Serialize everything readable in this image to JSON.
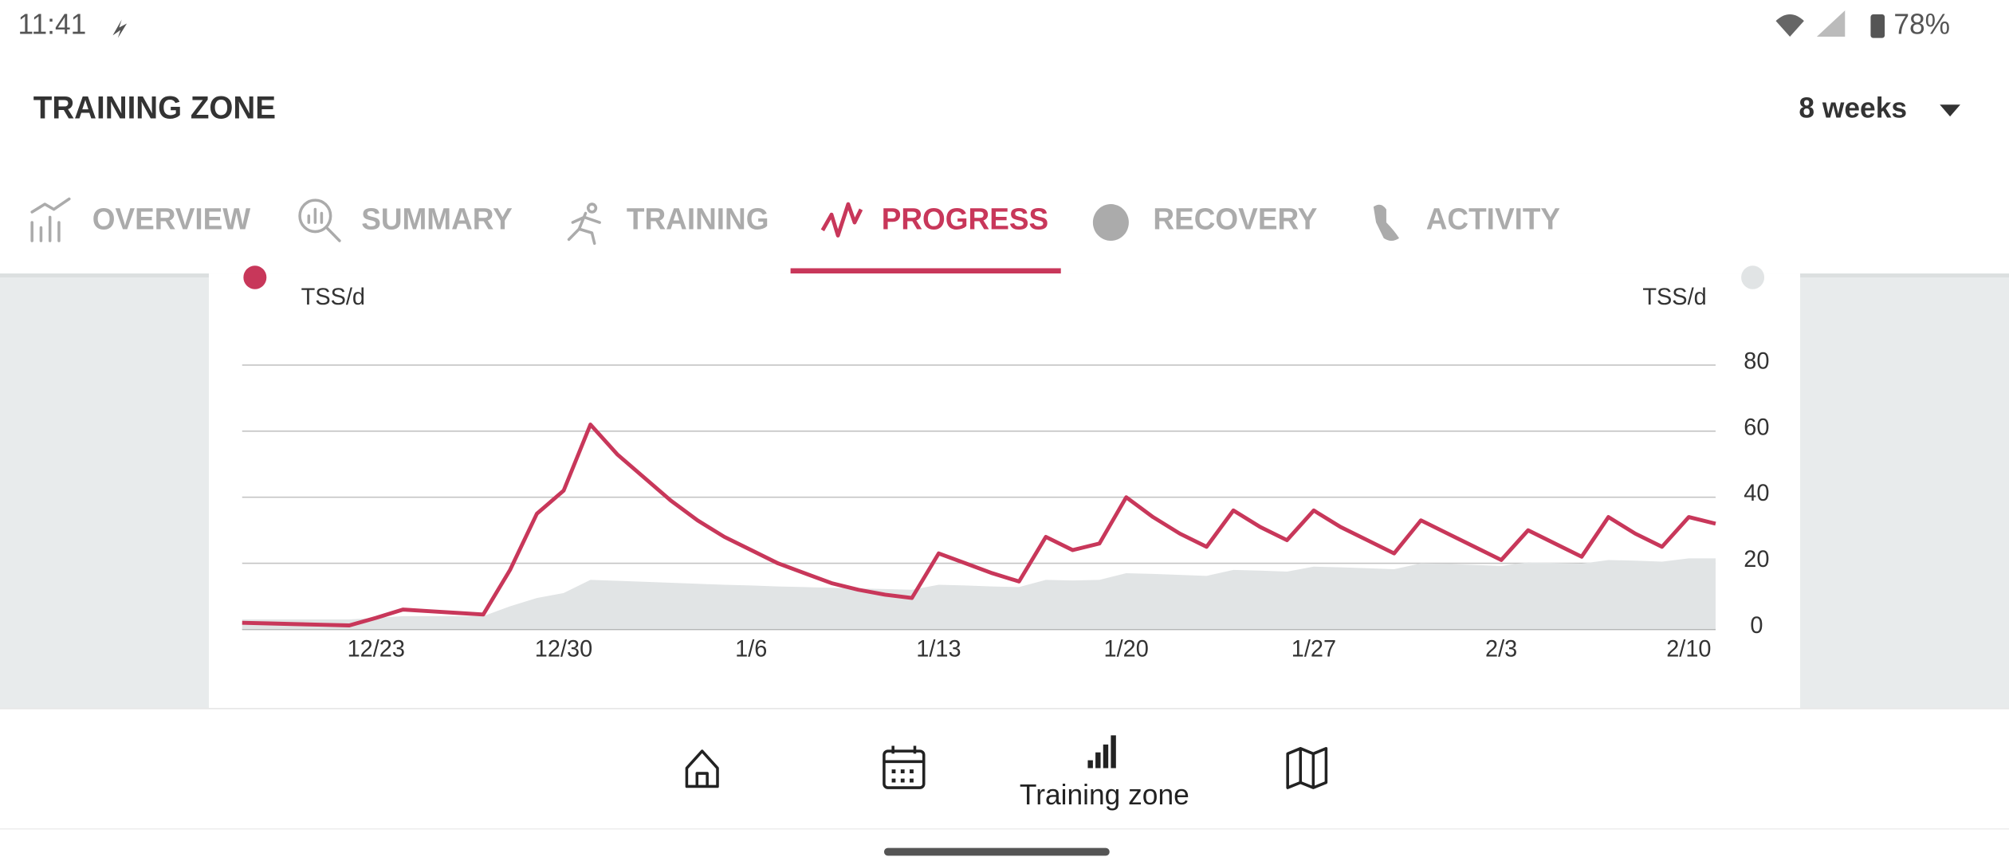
{
  "status_bar": {
    "time": "11:41",
    "battery": "78%"
  },
  "header": {
    "title": "TRAINING ZONE",
    "period": "8 weeks"
  },
  "tabs": {
    "labels": [
      "OVERVIEW",
      "SUMMARY",
      "TRAINING",
      "PROGRESS",
      "RECOVERY",
      "ACTIVITY"
    ],
    "active": 3
  },
  "chart_data": {
    "type": "line",
    "ylabel": "TSS/d",
    "y2label": "TSS/d",
    "categories": [
      null,
      null,
      null,
      null,
      null,
      "12/23",
      null,
      null,
      null,
      null,
      null,
      null,
      "12/30",
      null,
      null,
      null,
      null,
      null,
      null,
      "1/6",
      null,
      null,
      null,
      null,
      null,
      null,
      "1/13",
      null,
      null,
      null,
      null,
      null,
      null,
      "1/20",
      null,
      null,
      null,
      null,
      null,
      null,
      "1/27",
      null,
      null,
      null,
      null,
      null,
      null,
      "2/3",
      null,
      null,
      null,
      null,
      null,
      null,
      "2/10",
      null
    ],
    "series": [
      {
        "color": "#c8375a",
        "values": [
          2,
          1.8,
          1.6,
          1.4,
          1.2,
          3.5,
          6,
          5.5,
          5,
          4.5,
          18,
          35,
          42,
          62,
          53,
          46,
          39,
          33,
          28,
          24,
          20,
          17,
          14,
          12,
          10.5,
          9.5,
          23,
          20,
          17,
          14.5,
          28,
          24,
          26,
          40,
          34,
          29,
          25,
          36,
          31,
          27,
          36,
          31,
          27,
          23,
          33,
          29,
          25,
          21,
          30,
          26,
          22,
          34,
          29,
          25,
          34,
          32
        ]
      },
      {
        "color": "#e1e4e5",
        "values": [
          3,
          3,
          3,
          3,
          3,
          3.5,
          4,
          4,
          4,
          4,
          7,
          9.5,
          11,
          15,
          14.7,
          14.4,
          14.1,
          13.8,
          13.5,
          13.3,
          13,
          12.8,
          12.6,
          12.4,
          12.2,
          12,
          13.5,
          13.3,
          13,
          12.8,
          15,
          14.8,
          15,
          17,
          16.8,
          16.5,
          16.2,
          18,
          17.8,
          17.5,
          19,
          18.8,
          18.5,
          18.2,
          20,
          19.8,
          19.5,
          19.2,
          20.3,
          20.1,
          19.9,
          21,
          20.8,
          20.5,
          21.5,
          21.5
        ]
      }
    ],
    "ylim": [
      0,
      80
    ],
    "yticks": [
      0,
      20,
      40,
      60,
      80
    ],
    "grid": true
  },
  "bottom_nav": {
    "active_label": "Training zone"
  }
}
